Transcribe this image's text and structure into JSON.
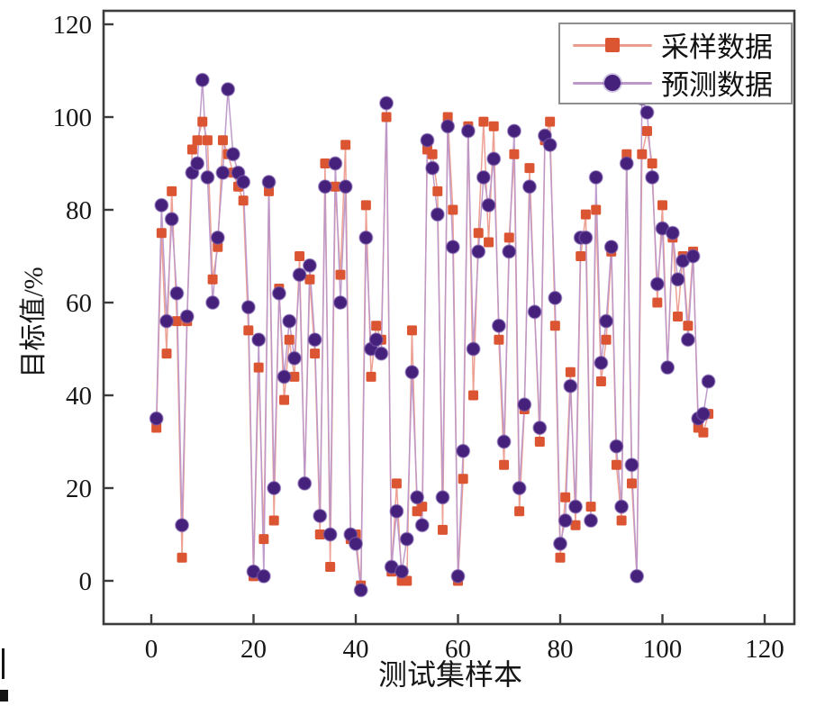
{
  "page": {
    "background": "#ffffff"
  },
  "chart_data": {
    "type": "line",
    "title": "",
    "xlabel": "测试集样本",
    "ylabel": "目标值/%",
    "xlim": [
      -9.3,
      126
    ],
    "ylim": [
      -9.3,
      123
    ],
    "xticks": [
      0,
      20,
      40,
      60,
      80,
      100,
      120
    ],
    "yticks": [
      0,
      20,
      40,
      60,
      80,
      100,
      120
    ],
    "grid": false,
    "legend_position": "top-right",
    "axis_color": "#3c3c3c",
    "x": [
      1,
      2,
      3,
      4,
      5,
      6,
      7,
      8,
      9,
      10,
      11,
      12,
      13,
      14,
      15,
      16,
      17,
      18,
      19,
      20,
      21,
      22,
      23,
      24,
      25,
      26,
      27,
      28,
      29,
      30,
      31,
      32,
      33,
      34,
      35,
      36,
      37,
      38,
      39,
      40,
      41,
      42,
      43,
      44,
      45,
      46,
      47,
      48,
      49,
      50,
      51,
      52,
      53,
      54,
      55,
      56,
      57,
      58,
      59,
      60,
      61,
      62,
      63,
      64,
      65,
      66,
      67,
      68,
      69,
      70,
      71,
      72,
      73,
      74,
      75,
      76,
      77,
      78,
      79,
      80,
      81,
      82,
      83,
      84,
      85,
      86,
      87,
      88,
      89,
      90,
      91,
      92,
      93,
      94,
      95,
      96,
      97,
      98,
      99,
      100,
      101,
      102,
      103,
      104,
      105,
      106,
      107,
      108,
      109
    ],
    "series": [
      {
        "name": "采样数据",
        "marker": "square",
        "marker_color": "#dc5532",
        "line_color": "#ec9c8e",
        "values": [
          33,
          75,
          49,
          84,
          56,
          5,
          56,
          93,
          95,
          99,
          95,
          65,
          72,
          95,
          92,
          88,
          85,
          82,
          54,
          1,
          46,
          9,
          84,
          13,
          63,
          39,
          52,
          44,
          70,
          21,
          65,
          49,
          10,
          90,
          3,
          85,
          66,
          94,
          9,
          10,
          -1,
          81,
          44,
          55,
          52,
          100,
          2,
          21,
          0,
          0,
          54,
          15,
          16,
          93,
          92,
          84,
          11,
          100,
          80,
          0,
          22,
          98,
          40,
          75,
          99,
          73,
          98,
          52,
          25,
          74,
          92,
          15,
          37,
          89,
          58,
          30,
          95,
          99,
          55,
          5,
          18,
          45,
          12,
          70,
          79,
          16,
          80,
          43,
          52,
          71,
          25,
          13,
          92,
          21,
          1,
          92,
          97,
          90,
          60,
          81,
          46,
          74,
          57,
          70,
          55,
          71,
          33,
          32,
          36
        ]
      },
      {
        "name": "预测数据",
        "marker": "circle",
        "marker_color": "#45217b",
        "line_color": "#bc97c9",
        "values": [
          35,
          81,
          56,
          78,
          62,
          12,
          57,
          88,
          90,
          108,
          87,
          60,
          74,
          88,
          106,
          92,
          88,
          86,
          59,
          2,
          52,
          1,
          86,
          20,
          62,
          44,
          56,
          48,
          66,
          21,
          68,
          52,
          14,
          85,
          10,
          90,
          60,
          85,
          10,
          8,
          -2,
          74,
          50,
          52,
          49,
          103,
          3,
          15,
          2,
          9,
          45,
          18,
          12,
          95,
          89,
          79,
          18,
          98,
          72,
          1,
          28,
          97,
          50,
          71,
          87,
          81,
          91,
          55,
          30,
          71,
          97,
          20,
          38,
          85,
          58,
          33,
          96,
          94,
          61,
          8,
          13,
          42,
          16,
          74,
          74,
          13,
          87,
          47,
          56,
          72,
          29,
          16,
          90,
          25,
          1,
          104,
          101,
          87,
          64,
          76,
          46,
          75,
          65,
          69,
          52,
          70,
          35,
          36,
          43
        ]
      }
    ]
  }
}
